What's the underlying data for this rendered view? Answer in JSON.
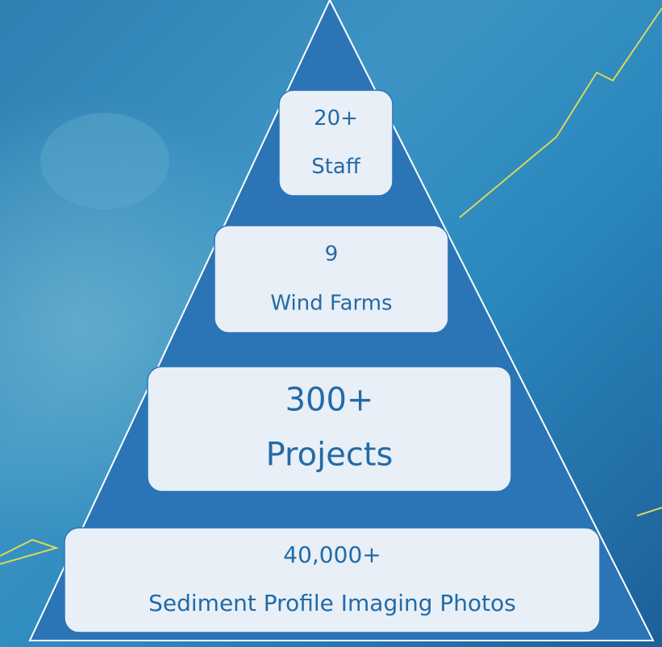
{
  "tiers": [
    {
      "value": "20+",
      "label": "Staff"
    },
    {
      "value": "9",
      "label": "Wind Farms"
    },
    {
      "value": "300+",
      "label": "Projects"
    },
    {
      "value": "40,000+",
      "label": "Sediment Profile Imaging Photos"
    }
  ]
}
